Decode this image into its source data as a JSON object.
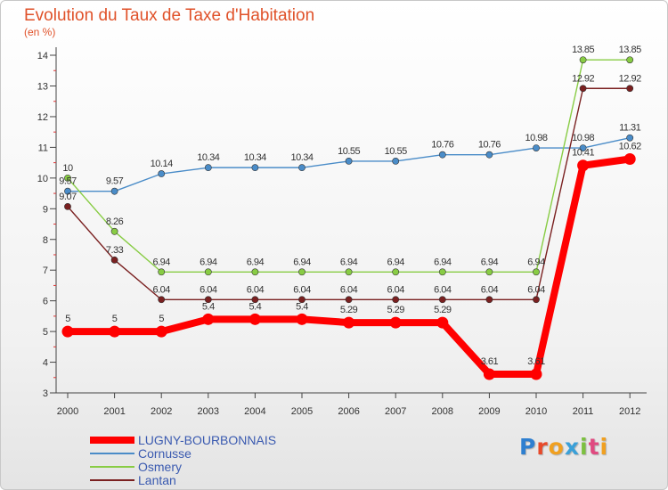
{
  "chart_data": {
    "type": "line",
    "title": "Evolution du Taux de Taxe d'Habitation",
    "subtitle": "(en %)",
    "categories": [
      "2000",
      "2001",
      "2002",
      "2003",
      "2004",
      "2005",
      "2006",
      "2007",
      "2008",
      "2009",
      "2010",
      "2011",
      "2012"
    ],
    "y_ticks": [
      "3",
      "4",
      "5",
      "6",
      "7",
      "8",
      "9",
      "10",
      "11",
      "12",
      "13",
      "14"
    ],
    "ylim": [
      3,
      14
    ],
    "grid": false,
    "legend_position": "bottom-left",
    "series": [
      {
        "name": "LUGNY-BOURBONNAIS",
        "color": "#ff0000",
        "values": [
          5,
          5,
          5,
          5.4,
          5.4,
          5.4,
          5.29,
          5.29,
          5.29,
          3.61,
          3.61,
          10.41,
          10.62
        ],
        "labels": [
          "5",
          "5",
          "5",
          "5.4",
          "5.4",
          "5.4",
          "5.29",
          "5.29",
          "5.29",
          "3.61",
          "3.61",
          "10.41",
          "10.62"
        ]
      },
      {
        "name": "Cornusse",
        "color": "#4a8cc8",
        "values": [
          9.57,
          9.57,
          10.14,
          10.34,
          10.34,
          10.34,
          10.55,
          10.55,
          10.76,
          10.76,
          10.98,
          10.98,
          11.31
        ],
        "labels": [
          "9.57",
          "9.57",
          "10.14",
          "10.34",
          "10.34",
          "10.34",
          "10.55",
          "10.55",
          "10.76",
          "10.76",
          "10.98",
          "10.98",
          "11.31"
        ]
      },
      {
        "name": "Osmery",
        "color": "#88cc44",
        "values": [
          10,
          8.26,
          6.94,
          6.94,
          6.94,
          6.94,
          6.94,
          6.94,
          6.94,
          6.94,
          6.94,
          13.85,
          13.85
        ],
        "labels": [
          "10",
          "8.26",
          "6.94",
          "6.94",
          "6.94",
          "6.94",
          "6.94",
          "6.94",
          "6.94",
          "6.94",
          "6.94",
          "13.85",
          "13.85"
        ]
      },
      {
        "name": "Lantan",
        "color": "#7a2020",
        "values": [
          9.07,
          7.33,
          6.04,
          6.04,
          6.04,
          6.04,
          6.04,
          6.04,
          6.04,
          6.04,
          6.04,
          12.92,
          12.92
        ],
        "labels": [
          "9.07",
          "7.33",
          "6.04",
          "6.04",
          "6.04",
          "6.04",
          "6.04",
          "6.04",
          "6.04",
          "6.04",
          "6.04",
          "12.92",
          "12.92"
        ]
      }
    ]
  },
  "logo": {
    "letters": [
      "P",
      "r",
      "o",
      "x",
      "i",
      "t",
      "i"
    ],
    "colors": [
      "#2e7fd0",
      "#e84a2a",
      "#f0a020",
      "#3aa0d8",
      "#7cc040",
      "#e04a80",
      "#f0a020"
    ]
  }
}
